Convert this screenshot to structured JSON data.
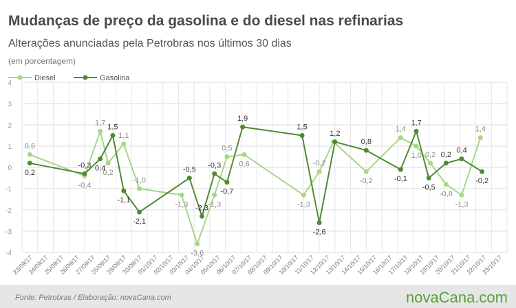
{
  "chart_data": {
    "type": "line",
    "title": "Mudanças de preço da gasolina e do diesel nas refinarias",
    "subtitle": "Alterações anunciadas pela Petrobras nos últimos 30 dias",
    "unit_note": "(em porcentagem)",
    "ylim": [
      -4,
      4
    ],
    "yticks": [
      4,
      3,
      2,
      1,
      0,
      -1,
      -2,
      -3,
      -4
    ],
    "grid": true,
    "legend_position": "top-left",
    "categories": [
      "23/09/17",
      "24/09/17",
      "25/09/17",
      "26/09/17",
      "27/09/17",
      "28/09/17",
      "29/09/17",
      "30/09/17",
      "01/10/17",
      "02/10/17",
      "03/10/17",
      "04/10/17",
      "05/10/17",
      "06/10/17",
      "07/10/17",
      "08/10/17",
      "09/10/17",
      "10/10/17",
      "11/10/17",
      "12/10/17",
      "13/10/17",
      "14/10/17",
      "15/10/17",
      "16/10/17",
      "17/10/17",
      "18/10/17",
      "19/10/17",
      "20/10/17",
      "21/10/17",
      "22/10/17",
      "23/10/17"
    ],
    "series": [
      {
        "name": "Diesel",
        "color": "#a6d785",
        "points": [
          {
            "x": 0,
            "y": 0.6,
            "label": "0,6"
          },
          {
            "x": 3.5,
            "y": -0.4,
            "label": "-0,4"
          },
          {
            "x": 4.5,
            "y": 1.7,
            "label": "1,7"
          },
          {
            "x": 5,
            "y": 0.2,
            "label": "0,2"
          },
          {
            "x": 6,
            "y": 1.1,
            "label": "1,1"
          },
          {
            "x": 7,
            "y": -1.0,
            "label": "-1,0"
          },
          {
            "x": 9.7,
            "y": -1.3,
            "label": "-1,3"
          },
          {
            "x": 10.7,
            "y": -3.6,
            "label": "-3,6"
          },
          {
            "x": 11.8,
            "y": -1.3,
            "label": "-1,3"
          },
          {
            "x": 12.6,
            "y": 0.5,
            "label": "0,5"
          },
          {
            "x": 13.7,
            "y": 0.6,
            "label": "0,6"
          },
          {
            "x": 17.5,
            "y": -1.3,
            "label": "-1,3"
          },
          {
            "x": 18.5,
            "y": -0.2,
            "label": "-0,2"
          },
          {
            "x": 19.4,
            "y": 1.2,
            "label": ""
          },
          {
            "x": 21.5,
            "y": -0.2,
            "label": "-0,2"
          },
          {
            "x": 23.7,
            "y": 1.4,
            "label": "1,4"
          },
          {
            "x": 24.7,
            "y": 1.0,
            "label": "1,0"
          },
          {
            "x": 25.6,
            "y": 0.2,
            "label": "0,2"
          },
          {
            "x": 26.6,
            "y": -0.8,
            "label": "-0,8"
          },
          {
            "x": 27.6,
            "y": -1.3,
            "label": "-1,3"
          },
          {
            "x": 28.8,
            "y": 1.4,
            "label": "1,4"
          }
        ]
      },
      {
        "name": "Gasolina",
        "color": "#4f8a36",
        "points": [
          {
            "x": 0,
            "y": 0.2,
            "label": "0,2"
          },
          {
            "x": 3.5,
            "y": -0.3,
            "label": "-0,3"
          },
          {
            "x": 4.5,
            "y": 0.4,
            "label": "0,4"
          },
          {
            "x": 5.3,
            "y": 1.5,
            "label": "1,5"
          },
          {
            "x": 6,
            "y": -1.1,
            "label": "-1,1"
          },
          {
            "x": 7,
            "y": -2.1,
            "label": "-2,1"
          },
          {
            "x": 10.2,
            "y": -0.5,
            "label": "-0,5"
          },
          {
            "x": 11,
            "y": -2.3,
            "label": "-2,3"
          },
          {
            "x": 11.8,
            "y": -0.3,
            "label": "-0,3"
          },
          {
            "x": 12.6,
            "y": -0.7,
            "label": "-0,7"
          },
          {
            "x": 13.6,
            "y": 1.9,
            "label": "1,9"
          },
          {
            "x": 17.4,
            "y": 1.5,
            "label": "1,5"
          },
          {
            "x": 18.5,
            "y": -2.6,
            "label": "-2,6"
          },
          {
            "x": 19.5,
            "y": 1.2,
            "label": "1,2"
          },
          {
            "x": 21.5,
            "y": 0.8,
            "label": "0,8"
          },
          {
            "x": 23.7,
            "y": -0.1,
            "label": "-0,1"
          },
          {
            "x": 24.7,
            "y": 1.7,
            "label": "1,7"
          },
          {
            "x": 25.5,
            "y": -0.5,
            "label": "-0,5"
          },
          {
            "x": 26.6,
            "y": 0.2,
            "label": "0,2"
          },
          {
            "x": 27.6,
            "y": 0.4,
            "label": "0,4"
          },
          {
            "x": 28.9,
            "y": -0.2,
            "label": "-0,2"
          }
        ]
      }
    ]
  },
  "footer": {
    "source": "Fonte: Petrobras  / Elaboração: novaCana.com",
    "logo_text": "novaCana.com",
    "background": "#e6e6e6",
    "logo_color": "#5aa03c"
  }
}
